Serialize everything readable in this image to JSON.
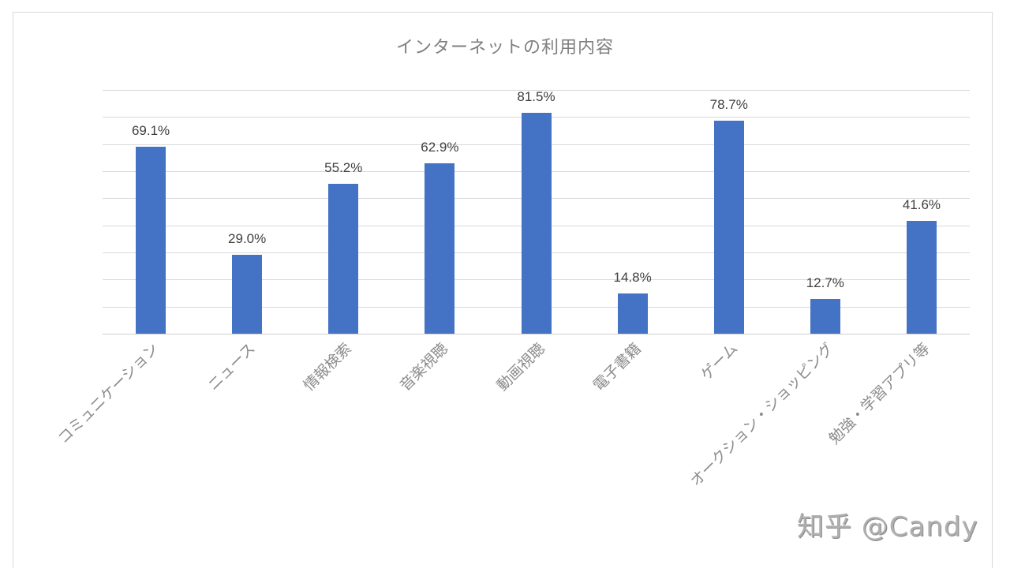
{
  "chart_data": {
    "type": "bar",
    "title": "インターネットの利用内容",
    "categories": [
      "コミュニケーション",
      "ニュース",
      "情報検索",
      "音楽視聴",
      "動画視聴",
      "電子書籍",
      "ゲーム",
      "オークション・ショッピング",
      "勉強・学習アプリ等"
    ],
    "values": [
      69.1,
      29.0,
      55.2,
      62.9,
      81.5,
      14.8,
      78.7,
      12.7,
      41.6
    ],
    "value_labels": [
      "69.1%",
      "29.0%",
      "55.2%",
      "62.9%",
      "81.5%",
      "14.8%",
      "78.7%",
      "12.7%",
      "41.6%"
    ],
    "unit": "%",
    "xlabel": "",
    "ylabel": "",
    "ylim": [
      0,
      90
    ],
    "y_gridline_step": 10,
    "grid": true,
    "y_axis_labels_visible": false,
    "legend": "none",
    "bar_color": "#4472c4",
    "x_label_rotation": -45
  },
  "watermark": "知乎 @Candy"
}
